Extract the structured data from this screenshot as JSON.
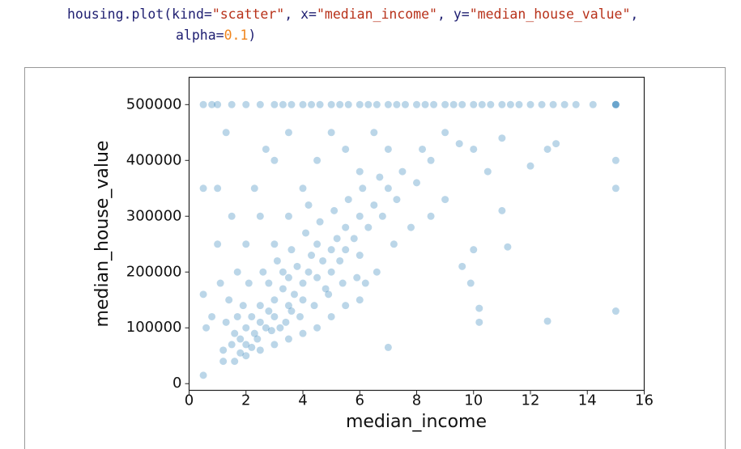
{
  "code": {
    "lines": [
      [
        {
          "text": "housing.plot(kind=",
          "style": "name"
        },
        {
          "text": "\"scatter\"",
          "style": "string"
        },
        {
          "text": ", x=",
          "style": "name"
        },
        {
          "text": "\"median_income\"",
          "style": "string"
        },
        {
          "text": ", y=",
          "style": "name"
        },
        {
          "text": "\"median_house_value\"",
          "style": "string"
        },
        {
          "text": ",",
          "style": "name"
        }
      ],
      [
        {
          "text": "alpha=",
          "style": "name"
        },
        {
          "text": "0.1",
          "style": "number"
        },
        {
          "text": ")",
          "style": "name"
        }
      ]
    ]
  },
  "chart_data": {
    "type": "scatter",
    "color": "#1f77b4",
    "x_label": "median_income",
    "y_label": "median_house_value",
    "xlim": [
      0,
      16
    ],
    "xticks": [
      0,
      2,
      4,
      6,
      8,
      10,
      12,
      14,
      16
    ],
    "ylim": [
      -12000,
      549000
    ],
    "yticks": [
      0,
      100000,
      200000,
      300000,
      400000,
      500000
    ],
    "x": [
      0.5,
      0.8,
      1.0,
      1.5,
      2.0,
      2.5,
      3.0,
      3.3,
      3.6,
      4.0,
      4.3,
      4.6,
      5.0,
      5.3,
      5.6,
      6.0,
      6.3,
      6.6,
      7.0,
      7.3,
      7.6,
      8.0,
      8.3,
      8.6,
      9.0,
      9.3,
      9.6,
      10.0,
      10.3,
      10.6,
      11.0,
      11.3,
      11.6,
      12.0,
      12.4,
      12.8,
      13.2,
      13.6,
      14.2,
      15.0,
      15.0,
      15.0,
      15.0,
      15.0,
      15.0,
      1.2,
      1.5,
      1.6,
      1.8,
      2.0,
      2.0,
      2.2,
      2.3,
      2.5,
      2.5,
      2.7,
      2.8,
      3.0,
      3.0,
      3.2,
      3.3,
      3.5,
      3.5,
      3.7,
      3.8,
      4.0,
      4.0,
      4.2,
      4.3,
      4.5,
      4.5,
      4.7,
      4.8,
      5.0,
      5.0,
      5.2,
      5.3,
      5.5,
      5.5,
      5.8,
      6.0,
      6.0,
      6.3,
      6.5,
      6.8,
      7.0,
      7.3,
      7.5,
      8.0,
      8.2,
      8.5,
      9.0,
      9.5,
      10.0,
      10.5,
      11.0,
      11.0,
      10.2,
      10.2,
      12.6,
      7.0,
      9.9,
      9.6,
      10.0,
      11.2,
      12.0,
      12.9,
      12.6,
      0.5,
      0.5,
      0.5,
      0.6,
      1.0,
      1.3,
      1.5,
      1.7,
      1.4,
      1.2,
      1.6,
      2.0,
      2.5,
      3.0,
      3.5,
      4.0,
      4.5,
      5.0,
      5.5,
      6.0,
      2.0,
      2.5,
      2.3,
      3.0,
      3.5,
      2.7,
      4.0,
      4.5,
      5.0,
      3.5,
      3.0,
      4.2,
      5.5,
      6.0,
      6.5,
      7.0,
      6.2,
      6.6,
      7.2,
      7.8,
      8.5,
      9.0,
      1.0,
      1.1,
      0.8,
      1.9,
      2.1,
      2.6,
      3.1,
      3.6,
      4.1,
      4.6,
      5.1,
      5.6,
      6.1,
      6.7,
      3.9,
      4.4,
      5.4,
      5.9,
      2.4,
      2.9,
      3.4,
      1.3,
      1.7,
      1.8,
      2.2,
      3.6,
      4.9,
      3.3,
      2.8
    ],
    "y": [
      500000,
      500000,
      500000,
      500000,
      500000,
      500000,
      500000,
      500000,
      500000,
      500000,
      500000,
      500000,
      500000,
      500000,
      500000,
      500000,
      500000,
      500000,
      500000,
      500000,
      500000,
      500000,
      500000,
      500000,
      500000,
      500000,
      500000,
      500000,
      500000,
      500000,
      500000,
      500000,
      500000,
      500000,
      500000,
      500000,
      500000,
      500000,
      500000,
      500000,
      500000,
      500000,
      400000,
      350000,
      130000,
      60000,
      70000,
      90000,
      80000,
      100000,
      70000,
      120000,
      90000,
      110000,
      140000,
      100000,
      130000,
      150000,
      120000,
      100000,
      170000,
      140000,
      190000,
      160000,
      210000,
      180000,
      150000,
      200000,
      230000,
      190000,
      250000,
      220000,
      170000,
      240000,
      200000,
      260000,
      220000,
      280000,
      240000,
      260000,
      300000,
      230000,
      280000,
      320000,
      300000,
      350000,
      330000,
      380000,
      360000,
      420000,
      400000,
      450000,
      430000,
      420000,
      380000,
      440000,
      310000,
      135000,
      110000,
      112000,
      65000,
      180000,
      210000,
      240000,
      245000,
      390000,
      430000,
      420000,
      15000,
      350000,
      160000,
      100000,
      350000,
      450000,
      300000,
      200000,
      150000,
      40000,
      40000,
      50000,
      60000,
      70000,
      80000,
      90000,
      100000,
      120000,
      140000,
      150000,
      250000,
      300000,
      350000,
      400000,
      450000,
      420000,
      350000,
      400000,
      450000,
      300000,
      250000,
      320000,
      420000,
      380000,
      450000,
      420000,
      180000,
      200000,
      250000,
      280000,
      300000,
      330000,
      250000,
      180000,
      120000,
      140000,
      180000,
      200000,
      220000,
      240000,
      270000,
      290000,
      310000,
      330000,
      350000,
      370000,
      120000,
      140000,
      180000,
      190000,
      80000,
      95000,
      110000,
      110000,
      120000,
      55000,
      65000,
      130000,
      160000,
      200000,
      180000
    ]
  }
}
